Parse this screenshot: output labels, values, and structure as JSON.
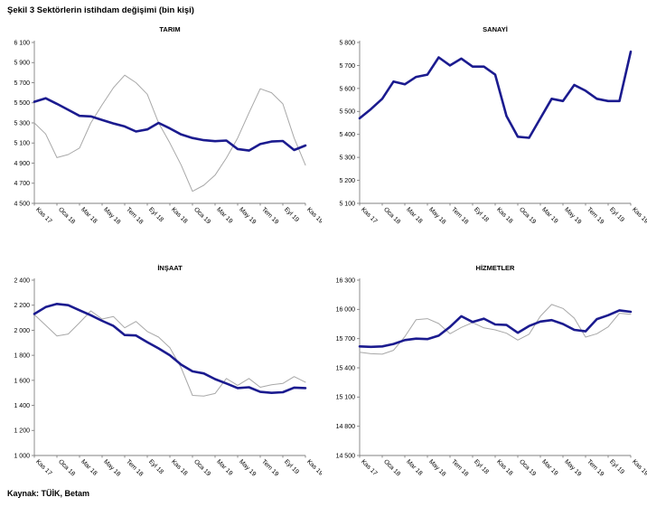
{
  "page": {
    "title": "Şekil 3 Sektörlerin istihdam değişimi (bin kişi)",
    "source": "Kaynak: TÜİK, Betam"
  },
  "colors": {
    "navy_line": "#1B1B8F",
    "gray_line": "#A8A8A8",
    "axis": "#808080",
    "text": "#000000",
    "background": "#FFFFFF"
  },
  "chart_data": [
    {
      "type": "line",
      "slug": "tarim",
      "title": "TARIM",
      "y_min": 4500,
      "y_max": 6100,
      "y_step": 200,
      "y_ticks": [
        "4 500",
        "4 700",
        "4 900",
        "5 100",
        "5 300",
        "5 500",
        "5 700",
        "5 900",
        "6 100"
      ],
      "x_ticks": [
        "Kas 17",
        "Oca 18",
        "Mar 18",
        "May 18",
        "Tem 18",
        "Eyl 18",
        "Kas 18",
        "Oca 19",
        "Mar 19",
        "May 19",
        "Tem 19",
        "Eyl 19",
        "Kas 19"
      ],
      "x_tick_positions": "every 2nd data point, 25 monthly points total",
      "grid": "off",
      "legend": "none",
      "series": [
        {
          "name": "navy-thick",
          "color": "#1B1B8F",
          "width": 2.6,
          "values": [
            5510,
            5545,
            5490,
            5430,
            5370,
            5365,
            5330,
            5295,
            5265,
            5215,
            5235,
            5300,
            5245,
            5185,
            5150,
            5128,
            5118,
            5125,
            5040,
            5025,
            5090,
            5115,
            5120,
            5030,
            5075
          ]
        },
        {
          "name": "gray-thin",
          "color": "#A8A8A8",
          "width": 1,
          "values": [
            5300,
            5190,
            4955,
            4985,
            5050,
            5300,
            5480,
            5650,
            5775,
            5700,
            5585,
            5300,
            5100,
            4880,
            4620,
            4680,
            4780,
            4950,
            5150,
            5400,
            5640,
            5600,
            5490,
            5150,
            4880
          ]
        }
      ]
    },
    {
      "type": "line",
      "slug": "sanayi",
      "title": "SANAYİ",
      "y_min": 5100,
      "y_max": 5800,
      "y_step": 100,
      "y_ticks": [
        "5 100",
        "5 200",
        "5 300",
        "5 400",
        "5 500",
        "5 600",
        "5 700",
        "5 800"
      ],
      "x_ticks": [
        "Kas 17",
        "Oca 18",
        "Mar 18",
        "May 18",
        "Tem 18",
        "Eyl 18",
        "Kas 18",
        "Oca 19",
        "Mar 19",
        "May 19",
        "Tem 19",
        "Eyl 19",
        "Kas 19"
      ],
      "x_tick_positions": "every 2nd data point, 25 monthly points total",
      "grid": "off",
      "legend": "none",
      "series": [
        {
          "name": "navy-thick",
          "color": "#1B1B8F",
          "width": 2.6,
          "values": [
            5470,
            5510,
            5555,
            5630,
            5618,
            5650,
            5660,
            5735,
            5700,
            5730,
            5695,
            5695,
            5660,
            5480,
            5390,
            5385,
            5470,
            5555,
            5545,
            5615,
            5590,
            5555,
            5545,
            5545,
            5760
          ]
        }
      ]
    },
    {
      "type": "line",
      "slug": "insaat",
      "title": "İNŞAAT",
      "y_min": 1000,
      "y_max": 2400,
      "y_step": 200,
      "y_ticks": [
        "1 000",
        "1 200",
        "1 400",
        "1 600",
        "1 800",
        "2 000",
        "2 200",
        "2 400"
      ],
      "x_ticks": [
        "Kas 17",
        "Oca 18",
        "Mar 18",
        "May 18",
        "Tem 18",
        "Eyl 18",
        "Kas 18",
        "Oca 19",
        "Mar 19",
        "May 19",
        "Tem 19",
        "Eyl 19",
        "Kas 19"
      ],
      "x_tick_positions": "every 2nd data point, 25 monthly points total",
      "grid": "off",
      "legend": "none",
      "series": [
        {
          "name": "navy-thick",
          "color": "#1B1B8F",
          "width": 2.6,
          "values": [
            2130,
            2185,
            2210,
            2200,
            2160,
            2120,
            2075,
            2035,
            1962,
            1958,
            1905,
            1855,
            1800,
            1725,
            1672,
            1655,
            1610,
            1575,
            1538,
            1545,
            1508,
            1500,
            1505,
            1542,
            1538
          ]
        },
        {
          "name": "gray-thin",
          "color": "#A8A8A8",
          "width": 1,
          "values": [
            2125,
            2040,
            1955,
            1970,
            2060,
            2155,
            2090,
            2110,
            2020,
            2070,
            1990,
            1945,
            1860,
            1700,
            1480,
            1475,
            1495,
            1615,
            1560,
            1615,
            1545,
            1565,
            1575,
            1630,
            1585
          ]
        }
      ]
    },
    {
      "type": "line",
      "slug": "hizmetler",
      "title": "HİZMETLER",
      "y_min": 14500,
      "y_max": 16300,
      "y_step": 300,
      "y_ticks": [
        "14 500",
        "14 800",
        "15 100",
        "15 400",
        "15 700",
        "16 000",
        "16 300"
      ],
      "x_ticks": [
        "Kas 17",
        "Oca 18",
        "Mar 18",
        "May 18",
        "Tem 18",
        "Eyl 18",
        "Kas 18",
        "Oca 19",
        "Mar 19",
        "May 19",
        "Tem 19",
        "Eyl 19",
        "Kas 19"
      ],
      "x_tick_positions": "every 2nd data point, 25 monthly points total",
      "grid": "off",
      "legend": "none",
      "series": [
        {
          "name": "navy-thick",
          "color": "#1B1B8F",
          "width": 2.6,
          "values": [
            15620,
            15615,
            15620,
            15645,
            15685,
            15700,
            15695,
            15730,
            15820,
            15930,
            15870,
            15905,
            15845,
            15840,
            15760,
            15830,
            15875,
            15890,
            15850,
            15790,
            15775,
            15900,
            15940,
            15990,
            15975
          ]
        },
        {
          "name": "gray-thin",
          "color": "#A8A8A8",
          "width": 1,
          "values": [
            15560,
            15545,
            15540,
            15580,
            15720,
            15895,
            15905,
            15855,
            15750,
            15815,
            15865,
            15810,
            15790,
            15755,
            15685,
            15745,
            15930,
            16050,
            16010,
            15910,
            15715,
            15750,
            15820,
            15960,
            15950
          ]
        }
      ]
    }
  ]
}
